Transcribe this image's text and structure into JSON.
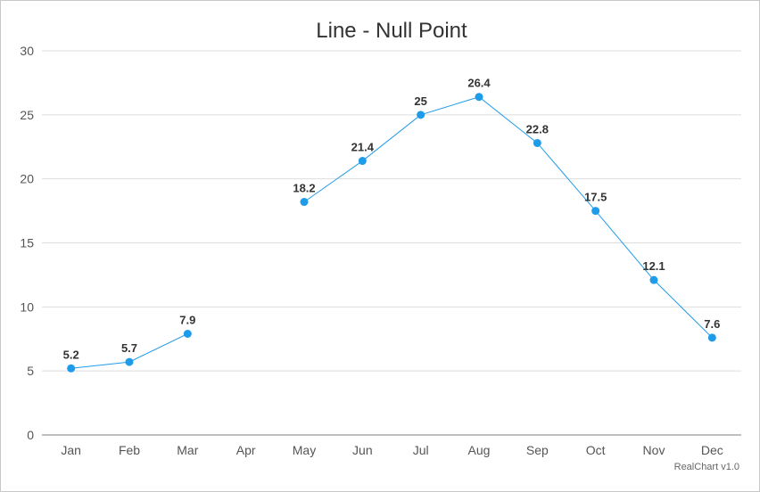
{
  "chart_data": {
    "type": "line",
    "title": "Line - Null Point",
    "categories": [
      "Jan",
      "Feb",
      "Mar",
      "Apr",
      "May",
      "Jun",
      "Jul",
      "Aug",
      "Sep",
      "Oct",
      "Nov",
      "Dec"
    ],
    "series": [
      {
        "values": [
          5.2,
          5.7,
          7.9,
          null,
          18.2,
          21.4,
          25,
          26.4,
          22.8,
          17.5,
          12.1,
          7.6
        ]
      }
    ],
    "data_labels": [
      "5.2",
      "5.7",
      "7.9",
      "",
      "18.2",
      "21.4",
      "25",
      "26.4",
      "22.8",
      "17.5",
      "12.1",
      "7.6"
    ],
    "yticks": [
      0,
      5,
      10,
      15,
      20,
      25,
      30
    ],
    "ylim": [
      0,
      30
    ],
    "xlabel": "",
    "ylabel": "",
    "grid": true,
    "legend": "none",
    "series_color": "#1e9be9",
    "credit": "RealChart v1.0"
  }
}
